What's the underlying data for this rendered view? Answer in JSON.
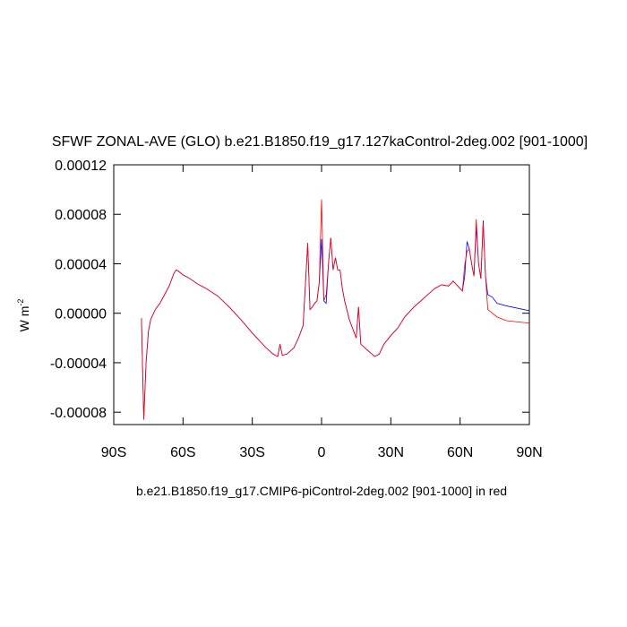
{
  "chart_data": {
    "type": "line",
    "title": "SFWF ZONAL-AVE (GLO) b.e21.B1850.f19_g17.127kaControl-2deg.002 [901-1000]",
    "x_label": "b.e21.B1850.f19_g17.CMIP6-piControl-2deg.002 [901-1000] in red",
    "y_label": "W m",
    "y_label_sup": "-2",
    "xlim": [
      -90,
      90
    ],
    "xticks": [
      {
        "value": -90,
        "label": "90S"
      },
      {
        "value": -60,
        "label": "60S"
      },
      {
        "value": -30,
        "label": "30S"
      },
      0,
      {
        "value": 30,
        "label": "30N"
      },
      {
        "value": 60,
        "label": "60N"
      },
      {
        "value": 90,
        "label": "90N"
      }
    ],
    "ylim": [
      -9e-05,
      0.00012
    ],
    "yticks": [
      -8e-05,
      -4e-05,
      {
        "value": 0,
        "label": "0.00000"
      },
      4e-05,
      8e-05,
      0.00012
    ],
    "x": [
      -78,
      -77,
      -76,
      -75,
      -74,
      -72,
      -70,
      -68,
      -66,
      -64,
      -63,
      -62,
      -60,
      -57,
      -54,
      -50,
      -45,
      -40,
      -35,
      -30,
      -27,
      -24,
      -21,
      -19,
      -18,
      -17,
      -15,
      -12,
      -10,
      -8,
      -6,
      -5,
      -4,
      -3,
      -2,
      -1,
      0,
      1,
      2,
      3,
      4,
      5,
      6,
      7,
      8,
      9,
      10,
      12,
      14,
      15,
      16,
      17,
      20,
      23,
      25,
      27,
      30,
      33,
      36,
      40,
      43,
      46,
      49,
      52,
      55,
      57,
      59,
      61,
      62,
      63,
      64,
      65,
      66,
      67,
      68,
      69,
      70,
      71,
      72,
      74,
      76,
      80,
      85,
      90
    ],
    "series": [
      {
        "color": "#0000ff",
        "values": [
          -4e-06,
          -8.6e-05,
          -4e-05,
          -1.5e-05,
          -5e-06,
          3e-06,
          8e-06,
          1.5e-05,
          2.2e-05,
          3.2e-05,
          3.5e-05,
          3.4e-05,
          3.1e-05,
          2.8e-05,
          2.4e-05,
          2e-05,
          1.4e-05,
          5e-06,
          -5e-06,
          -1.6e-05,
          -2.2e-05,
          -2.8e-05,
          -3.3e-05,
          -3.5e-05,
          -2.5e-05,
          -3.4e-05,
          -3.3e-05,
          -2.8e-05,
          -2e-05,
          -1e-05,
          5.6e-05,
          3e-06,
          5e-06,
          8e-06,
          1e-05,
          2.5e-05,
          6e-05,
          1e-05,
          8e-06,
          4e-05,
          6.1e-05,
          3.5e-05,
          4.5e-05,
          3.5e-05,
          3.5e-05,
          2e-05,
          1e-05,
          -5e-06,
          -1.5e-05,
          -2e-05,
          5e-06,
          -2.5e-05,
          -3e-05,
          -3.5e-05,
          -3.3e-05,
          -2.5e-05,
          -1.8e-05,
          -1.2e-05,
          -3e-06,
          5e-06,
          1e-05,
          1.5e-05,
          2e-05,
          2.3e-05,
          2.2e-05,
          2.6e-05,
          2.2e-05,
          1.8e-05,
          3e-05,
          5.8e-05,
          5.2e-05,
          4e-05,
          3e-05,
          7e-05,
          4e-05,
          2.8e-05,
          7.5e-05,
          3e-05,
          1.5e-05,
          1.3e-05,
          8e-06,
          6e-06,
          4e-06,
          2e-06
        ]
      },
      {
        "color": "#ff0000",
        "values": [
          -4e-06,
          -8.6e-05,
          -4e-05,
          -1.5e-05,
          -5e-06,
          3e-06,
          8e-06,
          1.5e-05,
          2.2e-05,
          3.2e-05,
          3.5e-05,
          3.4e-05,
          3.1e-05,
          2.8e-05,
          2.4e-05,
          2e-05,
          1.4e-05,
          5e-06,
          -5e-06,
          -1.6e-05,
          -2.2e-05,
          -2.8e-05,
          -3.3e-05,
          -3.5e-05,
          -2.5e-05,
          -3.4e-05,
          -3.3e-05,
          -2.8e-05,
          -2e-05,
          -1e-05,
          5.7e-05,
          3e-06,
          5e-06,
          8e-06,
          1e-05,
          2.5e-05,
          9.2e-05,
          1e-05,
          1.5e-05,
          4e-05,
          6.1e-05,
          3.5e-05,
          4.5e-05,
          3.5e-05,
          3.5e-05,
          2e-05,
          1e-05,
          -5e-06,
          -1.5e-05,
          -2e-05,
          5e-06,
          -2.5e-05,
          -3e-05,
          -3.5e-05,
          -3.3e-05,
          -2.5e-05,
          -1.8e-05,
          -1.2e-05,
          -3e-06,
          5e-06,
          1e-05,
          1.5e-05,
          2e-05,
          2.3e-05,
          2.2e-05,
          2.6e-05,
          2.2e-05,
          1.8e-05,
          3.9e-05,
          5e-05,
          5.2e-05,
          4e-05,
          3e-05,
          7.6e-05,
          4e-05,
          2.8e-05,
          7.3e-05,
          3e-05,
          3e-06,
          0.0,
          -3e-06,
          -6e-06,
          -7e-06,
          -8e-06
        ]
      }
    ]
  }
}
